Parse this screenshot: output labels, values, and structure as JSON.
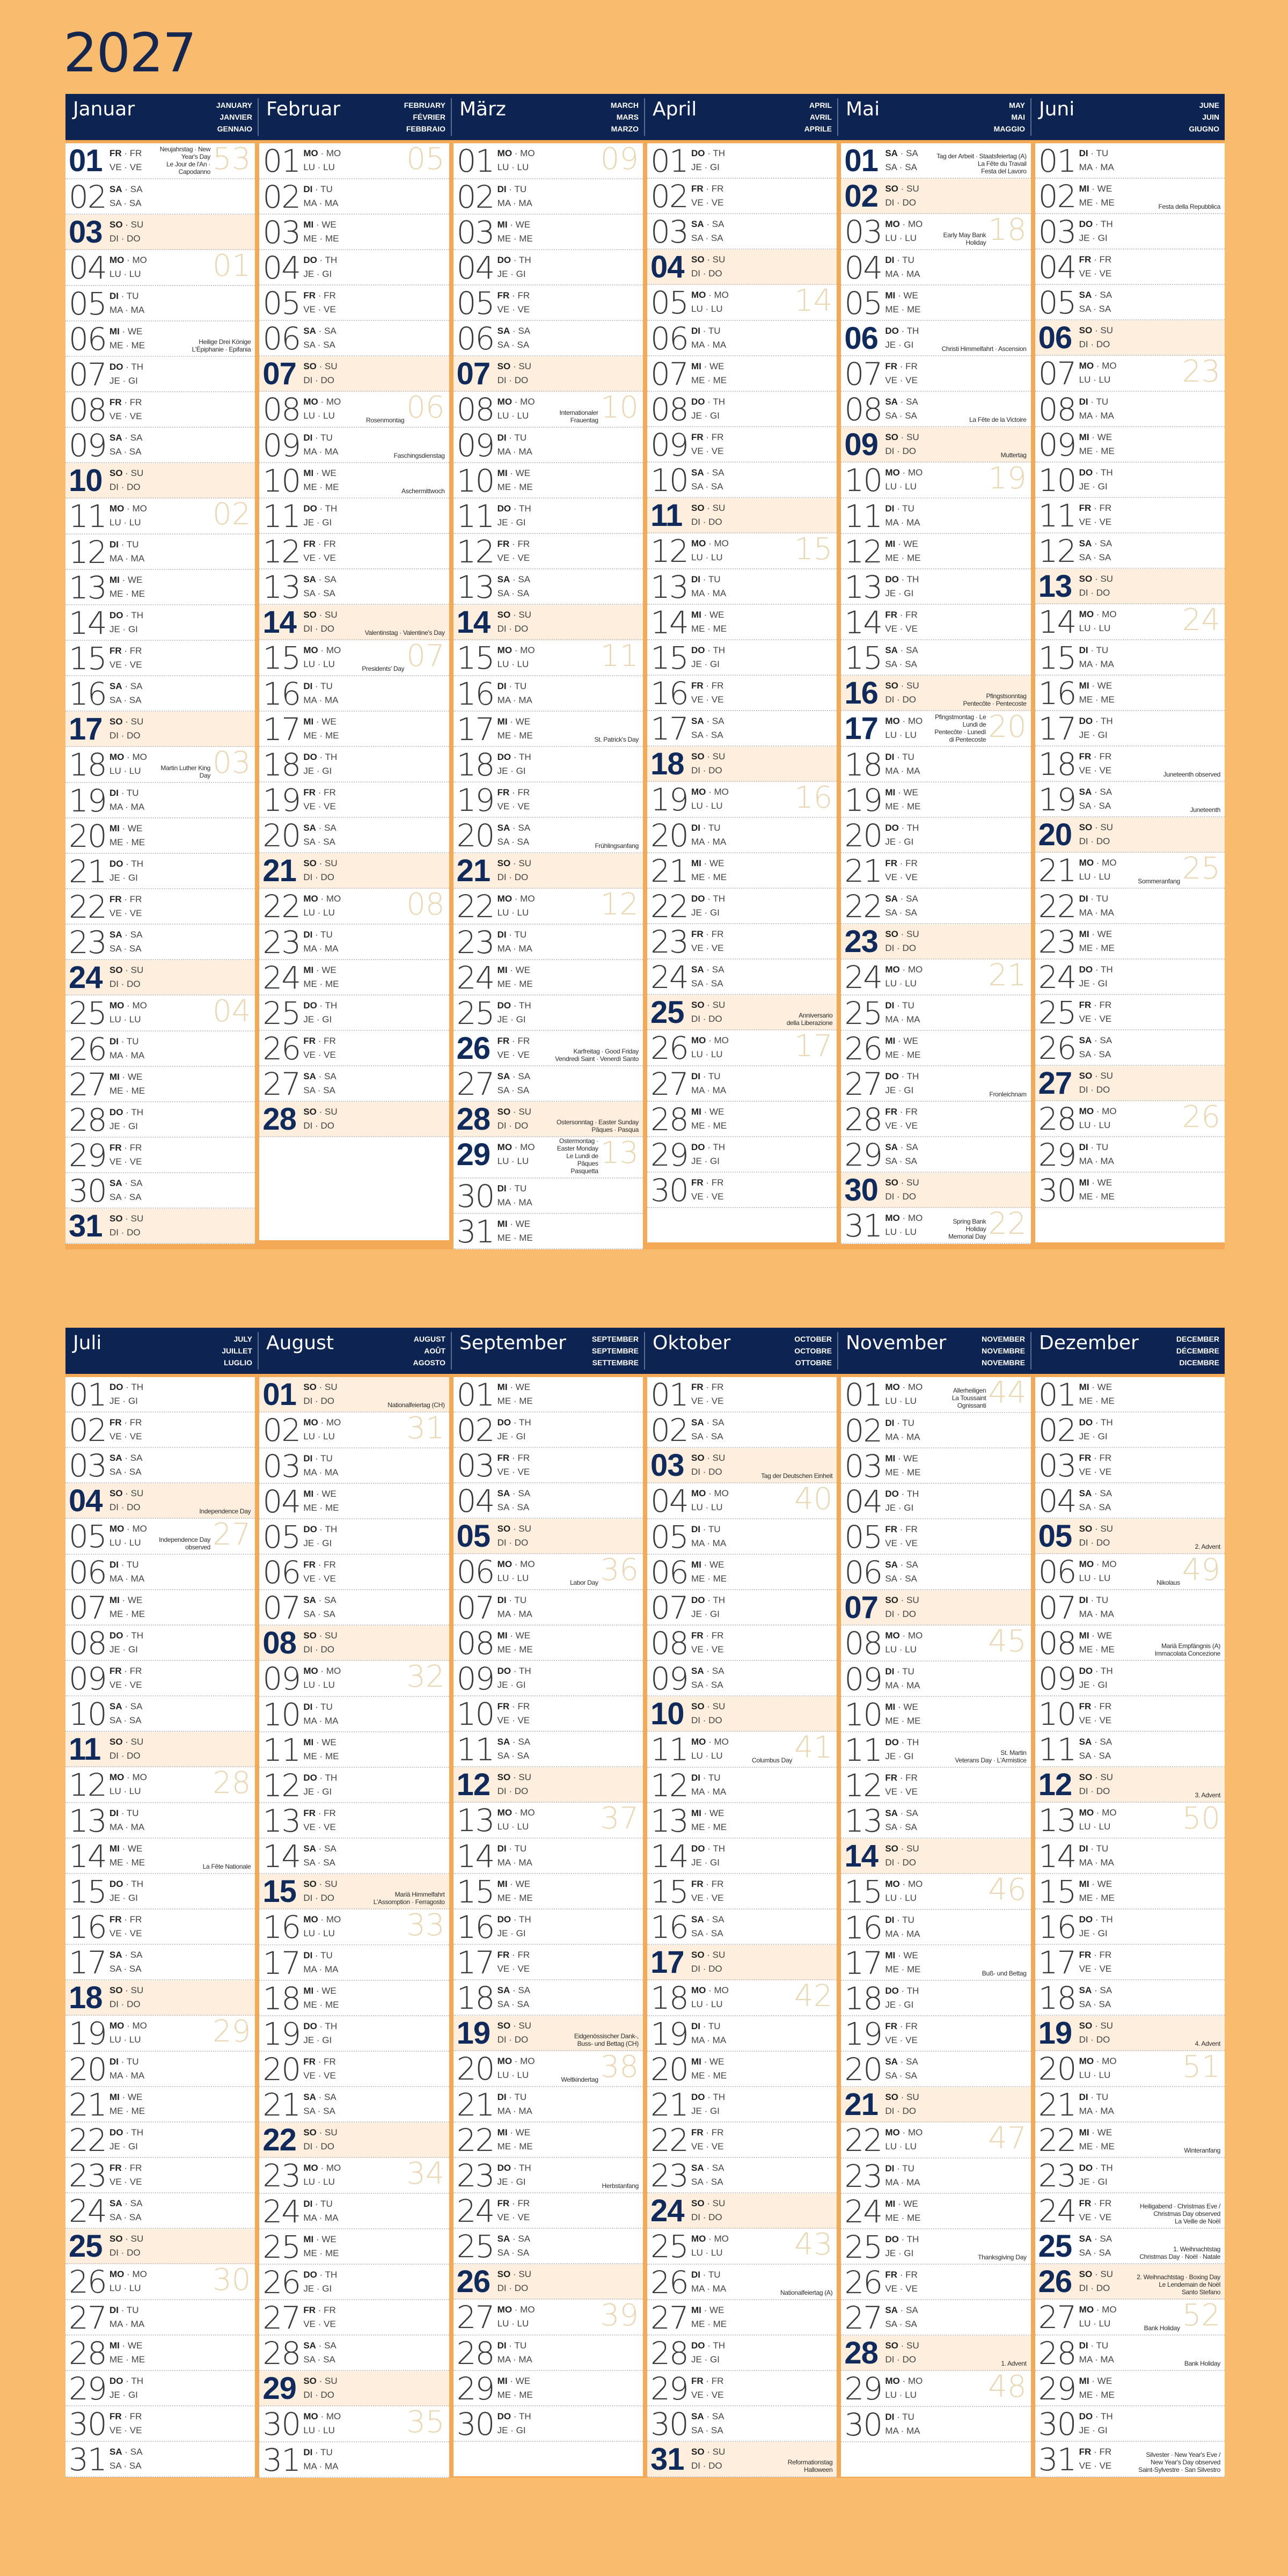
{
  "title": "2027",
  "year": 2027,
  "colors": {
    "background": "#f9bb6e",
    "header": "#0d2452",
    "sunday_row": "#fdeedd",
    "highlight_number": "#102a5c",
    "week_number": "#ead7b4"
  },
  "weekday_labels": [
    {
      "de": "SO",
      "en": "SU",
      "fr": "DI",
      "it": "DO"
    },
    {
      "de": "MO",
      "en": "MO",
      "fr": "LU",
      "it": "LU"
    },
    {
      "de": "DI",
      "en": "TU",
      "fr": "MA",
      "it": "MA"
    },
    {
      "de": "MI",
      "en": "WE",
      "fr": "ME",
      "it": "ME"
    },
    {
      "de": "DO",
      "en": "TH",
      "fr": "JE",
      "it": "GI"
    },
    {
      "de": "FR",
      "en": "FR",
      "fr": "VE",
      "it": "VE"
    },
    {
      "de": "SA",
      "en": "SA",
      "fr": "SA",
      "it": "SA"
    }
  ],
  "months": [
    {
      "name": "Januar",
      "en": "JANUARY",
      "fr": "JANVIER",
      "it": "GENNAIO",
      "weeks": {
        "1": "53",
        "4": "01",
        "11": "02",
        "18": "03",
        "25": "04"
      },
      "bold": [
        1
      ],
      "holidays": {
        "1": [
          "Neujahrstag · New Year's Day",
          "Le Jour de l'An · Capodanno"
        ],
        "6": [
          "Heilige Drei Könige",
          "L'Épiphanie · Epifania"
        ],
        "18": [
          "Martin Luther King Day"
        ]
      }
    },
    {
      "name": "Februar",
      "en": "FEBRUARY",
      "fr": "FÉVRIER",
      "it": "FEBBRAIO",
      "weeks": {
        "1": "05",
        "8": "06",
        "15": "07",
        "22": "08"
      },
      "bold": [],
      "holidays": {
        "8": [
          "Rosenmontag"
        ],
        "9": [
          "Faschingsdienstag"
        ],
        "10": [
          "Aschermittwoch"
        ],
        "14": [
          "Valentinstag · Valentine's Day"
        ],
        "15": [
          "Presidents' Day"
        ]
      }
    },
    {
      "name": "März",
      "en": "MARCH",
      "fr": "MARS",
      "it": "MARZO",
      "weeks": {
        "1": "09",
        "8": "10",
        "15": "11",
        "22": "12",
        "29": "13"
      },
      "bold": [
        26,
        29
      ],
      "holidays": {
        "8": [
          "Internationaler Frauentag"
        ],
        "17": [
          "St. Patrick's Day"
        ],
        "20": [
          "Frühlingsanfang"
        ],
        "26": [
          "Karfreitag · Good Friday",
          "Vendredi Saint · Venerdì Santo"
        ],
        "28": [
          "Ostersonntag · Easter Sunday",
          "Pâques · Pasqua"
        ],
        "29": [
          "Ostermontag · Easter Monday",
          "Le Lundi de Pâques",
          "Pasquetta"
        ]
      }
    },
    {
      "name": "April",
      "en": "APRIL",
      "fr": "AVRIL",
      "it": "APRILE",
      "weeks": {
        "5": "14",
        "12": "15",
        "19": "16",
        "26": "17"
      },
      "bold": [],
      "holidays": {
        "25": [
          "Anniversario",
          "della Liberazione"
        ]
      }
    },
    {
      "name": "Mai",
      "en": "MAY",
      "fr": "MAI",
      "it": "MAGGIO",
      "weeks": {
        "3": "18",
        "10": "19",
        "17": "20",
        "24": "21",
        "31": "22"
      },
      "bold": [
        1,
        6,
        17
      ],
      "holidays": {
        "1": [
          "Tag der Arbeit · Staatsfeiertag (A)",
          "La Fête du Travail",
          "Festa del Lavoro"
        ],
        "3": [
          "Early May Bank Holiday"
        ],
        "6": [
          "Christi Himmelfahrt · Ascension"
        ],
        "8": [
          "La Fête de la Victoire"
        ],
        "9": [
          "Muttertag"
        ],
        "16": [
          "Pfingstsonntag",
          "Pentecôte · Pentecoste"
        ],
        "17": [
          "Pfingstmontag · Le Lundi de",
          "Pentecôte · Lunedì di Pentecoste"
        ],
        "27": [
          "Fronleichnam"
        ],
        "31": [
          "Spring Bank Holiday",
          "Memorial Day"
        ]
      }
    },
    {
      "name": "Juni",
      "en": "JUNE",
      "fr": "JUIN",
      "it": "GIUGNO",
      "weeks": {
        "7": "23",
        "14": "24",
        "21": "25",
        "28": "26"
      },
      "bold": [],
      "holidays": {
        "2": [
          "Festa della Repubblica"
        ],
        "18": [
          "Juneteenth observed"
        ],
        "19": [
          "Juneteenth"
        ],
        "21": [
          "Sommeranfang"
        ]
      }
    },
    {
      "name": "Juli",
      "en": "JULY",
      "fr": "JUILLET",
      "it": "LUGLIO",
      "weeks": {
        "5": "27",
        "12": "28",
        "19": "29",
        "26": "30"
      },
      "bold": [],
      "holidays": {
        "4": [
          "Independence Day"
        ],
        "5": [
          "Independence Day observed"
        ],
        "14": [
          "La Fête Nationale"
        ]
      }
    },
    {
      "name": "August",
      "en": "AUGUST",
      "fr": "AOÛT",
      "it": "AGOSTO",
      "weeks": {
        "2": "31",
        "9": "32",
        "16": "33",
        "23": "34",
        "30": "35"
      },
      "bold": [],
      "holidays": {
        "1": [
          "Nationalfeiertag (CH)"
        ],
        "15": [
          "Mariä Himmelfahrt",
          "L'Assomption · Ferragosto"
        ]
      }
    },
    {
      "name": "September",
      "en": "SEPTEMBER",
      "fr": "SEPTEMBRE",
      "it": "SETTEMBRE",
      "weeks": {
        "6": "36",
        "13": "37",
        "20": "38",
        "27": "39"
      },
      "bold": [],
      "holidays": {
        "6": [
          "Labor Day"
        ],
        "19": [
          "Eidgenössischer Dank-,",
          "Buss- und Bettag (CH)"
        ],
        "20": [
          "Weltkindertag"
        ],
        "23": [
          "Herbstanfang"
        ]
      }
    },
    {
      "name": "Oktober",
      "en": "OCTOBER",
      "fr": "OCTOBRE",
      "it": "OTTOBRE",
      "weeks": {
        "4": "40",
        "11": "41",
        "18": "42",
        "25": "43"
      },
      "bold": [],
      "holidays": {
        "3": [
          "Tag der Deutschen Einheit"
        ],
        "11": [
          "Columbus Day"
        ],
        "26": [
          "Nationalfeiertag (A)"
        ],
        "31": [
          "Reformationstag",
          "Halloween"
        ]
      }
    },
    {
      "name": "November",
      "en": "NOVEMBER",
      "fr": "NOVEMBRE",
      "it": "NOVEMBRE",
      "weeks": {
        "1": "44",
        "8": "45",
        "15": "46",
        "22": "47",
        "29": "48"
      },
      "bold": [],
      "holidays": {
        "1": [
          "Allerheiligen",
          "La Toussaint",
          "Ognissanti"
        ],
        "11": [
          "St. Martin",
          "Veterans Day · L'Armistice"
        ],
        "17": [
          "Buß- und Bettag"
        ],
        "25": [
          "Thanksgiving Day"
        ],
        "28": [
          "1. Advent"
        ]
      }
    },
    {
      "name": "Dezember",
      "en": "DECEMBER",
      "fr": "DÉCEMBRE",
      "it": "DICEMBRE",
      "weeks": {
        "6": "49",
        "13": "50",
        "20": "51",
        "27": "52"
      },
      "bold": [
        25
      ],
      "holidays": {
        "5": [
          "2. Advent"
        ],
        "6": [
          "Nikolaus"
        ],
        "8": [
          "Mariä Empfängnis (A)",
          "Immacolata Concezione"
        ],
        "12": [
          "3. Advent"
        ],
        "19": [
          "4. Advent"
        ],
        "22": [
          "Winteranfang"
        ],
        "24": [
          "Heiligabend · Christmas Eve /",
          "Christmas Day observed",
          "La Veille de Noël"
        ],
        "25": [
          "1. Weihnachtstag",
          "Christmas Day · Noël · Natale"
        ],
        "26": [
          "2. Weihnachtstag · Boxing Day",
          "Le Lendemain de Noël",
          "Santo Stefano"
        ],
        "27": [
          "Bank Holiday"
        ],
        "28": [
          "Bank Holiday"
        ],
        "31": [
          "Silvester · New Year's Eve /",
          "New Year's Day observed",
          "Saint-Sylvestre · San Silvestro"
        ]
      }
    }
  ]
}
